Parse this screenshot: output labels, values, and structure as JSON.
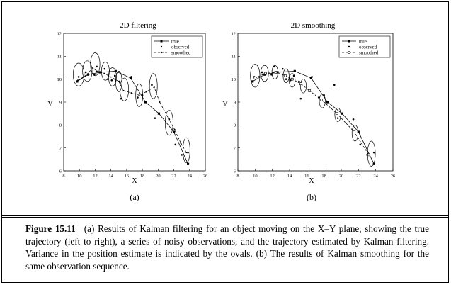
{
  "figure": {
    "number": "Figure 15.11",
    "caption": "(a) Results of Kalman filtering for an object moving on the X–Y plane, showing the true trajectory (left to right), a series of noisy observations, and the trajectory estimated by Kalman filtering. Variance in the position estimate is indicated by the ovals. (b) The results of Kalman smoothing for the same observation sequence."
  },
  "chart_data": [
    {
      "type": "line",
      "title": "2D filtering",
      "panel_label": "(a)",
      "xlabel": "X",
      "ylabel": "Y",
      "xlim": [
        8,
        26
      ],
      "ylim": [
        6,
        12
      ],
      "xticks": [
        "8",
        "10",
        "12",
        "14",
        "16",
        "18",
        "20",
        "22",
        "24",
        "26"
      ],
      "yticks": [
        "6",
        "7",
        "8",
        "9",
        "10",
        "11",
        "12"
      ],
      "legend": {
        "position": "top-right",
        "entries": [
          "true",
          "observed",
          "smoothed"
        ]
      },
      "series": [
        {
          "name": "true",
          "style": "solid-square",
          "x": [
            9.7,
            11.1,
            12.6,
            14.6,
            16.5,
            18.4,
            20.1,
            22.0,
            23.8
          ],
          "y": [
            9.9,
            10.2,
            10.3,
            10.35,
            10.05,
            9.0,
            8.5,
            7.7,
            6.3
          ]
        },
        {
          "name": "observed",
          "style": "dot",
          "x": [
            9.9,
            10.8,
            11.9,
            12.2,
            13.2,
            13.6,
            14.1,
            14.5,
            15.1,
            15.3,
            16.6,
            17.4,
            18.0,
            19.2,
            19.6,
            21.4,
            22.2,
            23.0,
            23.8
          ],
          "y": [
            10.1,
            10.3,
            10.2,
            10.55,
            10.45,
            10.0,
            9.95,
            10.15,
            9.9,
            9.15,
            10.1,
            9.2,
            9.3,
            9.75,
            8.3,
            8.25,
            7.15,
            6.7,
            6.8
          ]
        },
        {
          "name": "smoothed",
          "style": "dashed-dot",
          "x": [
            9.8,
            10.8,
            11.7,
            12.2,
            13.2,
            13.9,
            14.5,
            15.0,
            15.6,
            16.6,
            17.6,
            18.5,
            19.5,
            20.2,
            21.3,
            22.1,
            22.9,
            23.6
          ],
          "y": [
            9.95,
            10.15,
            10.5,
            10.35,
            10.25,
            10.1,
            10.0,
            9.9,
            9.5,
            9.4,
            9.3,
            9.45,
            9.65,
            9.0,
            8.3,
            7.8,
            7.2,
            6.8
          ]
        }
      ],
      "ellipses": [
        {
          "x": 9.9,
          "y": 10.2,
          "rx": 0.7,
          "ry": 0.5
        },
        {
          "x": 11.0,
          "y": 10.35,
          "rx": 0.6,
          "ry": 0.45
        },
        {
          "x": 12.0,
          "y": 10.65,
          "rx": 0.6,
          "ry": 0.5
        },
        {
          "x": 13.3,
          "y": 10.35,
          "rx": 0.5,
          "ry": 0.4
        },
        {
          "x": 14.2,
          "y": 10.1,
          "rx": 0.5,
          "ry": 0.4
        },
        {
          "x": 15.0,
          "y": 9.9,
          "rx": 0.4,
          "ry": 0.45
        },
        {
          "x": 15.7,
          "y": 9.55,
          "rx": 0.55,
          "ry": 0.5
        },
        {
          "x": 17.6,
          "y": 9.3,
          "rx": 0.45,
          "ry": 0.5
        },
        {
          "x": 19.4,
          "y": 9.7,
          "rx": 0.5,
          "ry": 0.55
        },
        {
          "x": 21.4,
          "y": 8.1,
          "rx": 0.5,
          "ry": 0.55
        },
        {
          "x": 23.6,
          "y": 6.9,
          "rx": 0.45,
          "ry": 0.55
        }
      ]
    },
    {
      "type": "line",
      "title": "2D smoothing",
      "panel_label": "(b)",
      "xlabel": "X",
      "ylabel": "Y",
      "xlim": [
        8,
        26
      ],
      "ylim": [
        6,
        12
      ],
      "xticks": [
        "8",
        "10",
        "12",
        "14",
        "16",
        "18",
        "20",
        "22",
        "24",
        "26"
      ],
      "yticks": [
        "6",
        "7",
        "8",
        "9",
        "10",
        "11",
        "12"
      ],
      "legend": {
        "position": "top-right",
        "entries": [
          "true",
          "observed",
          "smoothed"
        ]
      },
      "series": [
        {
          "name": "true",
          "style": "solid-square",
          "x": [
            9.7,
            11.1,
            12.6,
            14.6,
            16.5,
            18.4,
            20.1,
            22.0,
            23.8
          ],
          "y": [
            9.9,
            10.2,
            10.3,
            10.35,
            10.05,
            9.0,
            8.5,
            7.7,
            6.3
          ]
        },
        {
          "name": "observed",
          "style": "dot",
          "x": [
            9.9,
            10.8,
            11.9,
            12.2,
            13.2,
            13.6,
            14.1,
            14.5,
            15.1,
            15.3,
            16.6,
            17.4,
            18.0,
            19.2,
            19.6,
            21.4,
            22.2,
            23.0,
            23.8
          ],
          "y": [
            10.1,
            10.3,
            10.2,
            10.55,
            10.45,
            10.0,
            9.95,
            10.15,
            9.9,
            9.15,
            10.1,
            9.2,
            9.3,
            9.75,
            8.3,
            8.25,
            7.15,
            6.7,
            6.8
          ]
        },
        {
          "name": "smoothed",
          "style": "dashed-square",
          "x": [
            10.0,
            11.2,
            12.4,
            13.5,
            14.3,
            15.3,
            16.3,
            17.7,
            19.5,
            21.5,
            23.2
          ],
          "y": [
            10.05,
            10.25,
            10.3,
            10.15,
            10.0,
            9.8,
            9.5,
            9.1,
            8.5,
            7.7,
            6.7
          ]
        }
      ],
      "ellipses": [
        {
          "x": 10.0,
          "y": 10.15,
          "rx": 0.55,
          "ry": 0.5
        },
        {
          "x": 11.1,
          "y": 10.25,
          "rx": 0.45,
          "ry": 0.35
        },
        {
          "x": 12.3,
          "y": 10.3,
          "rx": 0.35,
          "ry": 0.3
        },
        {
          "x": 13.6,
          "y": 10.15,
          "rx": 0.35,
          "ry": 0.3
        },
        {
          "x": 14.3,
          "y": 9.95,
          "rx": 0.35,
          "ry": 0.3
        },
        {
          "x": 15.6,
          "y": 9.7,
          "rx": 0.35,
          "ry": 0.3
        },
        {
          "x": 17.8,
          "y": 9.05,
          "rx": 0.35,
          "ry": 0.3
        },
        {
          "x": 19.6,
          "y": 8.45,
          "rx": 0.35,
          "ry": 0.3
        },
        {
          "x": 21.6,
          "y": 7.65,
          "rx": 0.35,
          "ry": 0.35
        },
        {
          "x": 23.5,
          "y": 6.75,
          "rx": 0.45,
          "ry": 0.55
        }
      ]
    }
  ]
}
